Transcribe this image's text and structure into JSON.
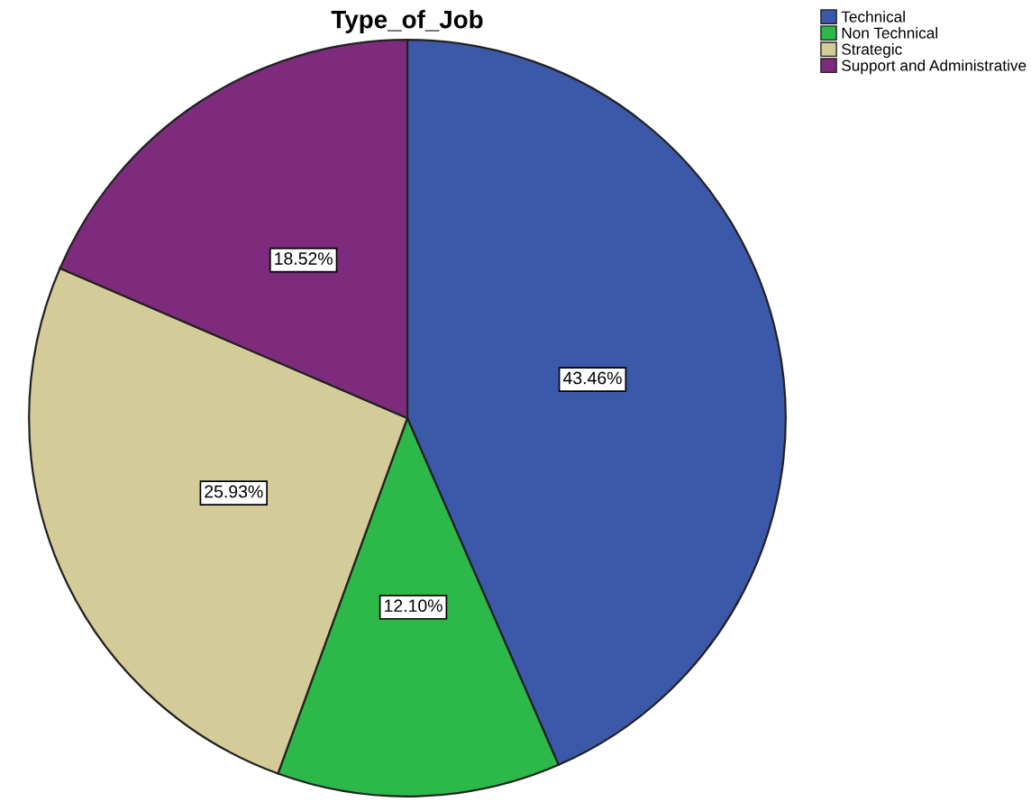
{
  "chart_data": {
    "type": "pie",
    "title": "Type_of_Job",
    "categories": [
      "Technical",
      "Non Technical",
      "Strategic",
      "Support and Administrative"
    ],
    "values": [
      43.46,
      12.1,
      25.93,
      18.52
    ],
    "colors": [
      "#3c58a8",
      "#2db84a",
      "#d4cc98",
      "#7e2b7e"
    ],
    "value_labels": [
      "43.46%",
      "12.10%",
      "25.93%",
      "18.52%"
    ],
    "legend": "top right"
  }
}
